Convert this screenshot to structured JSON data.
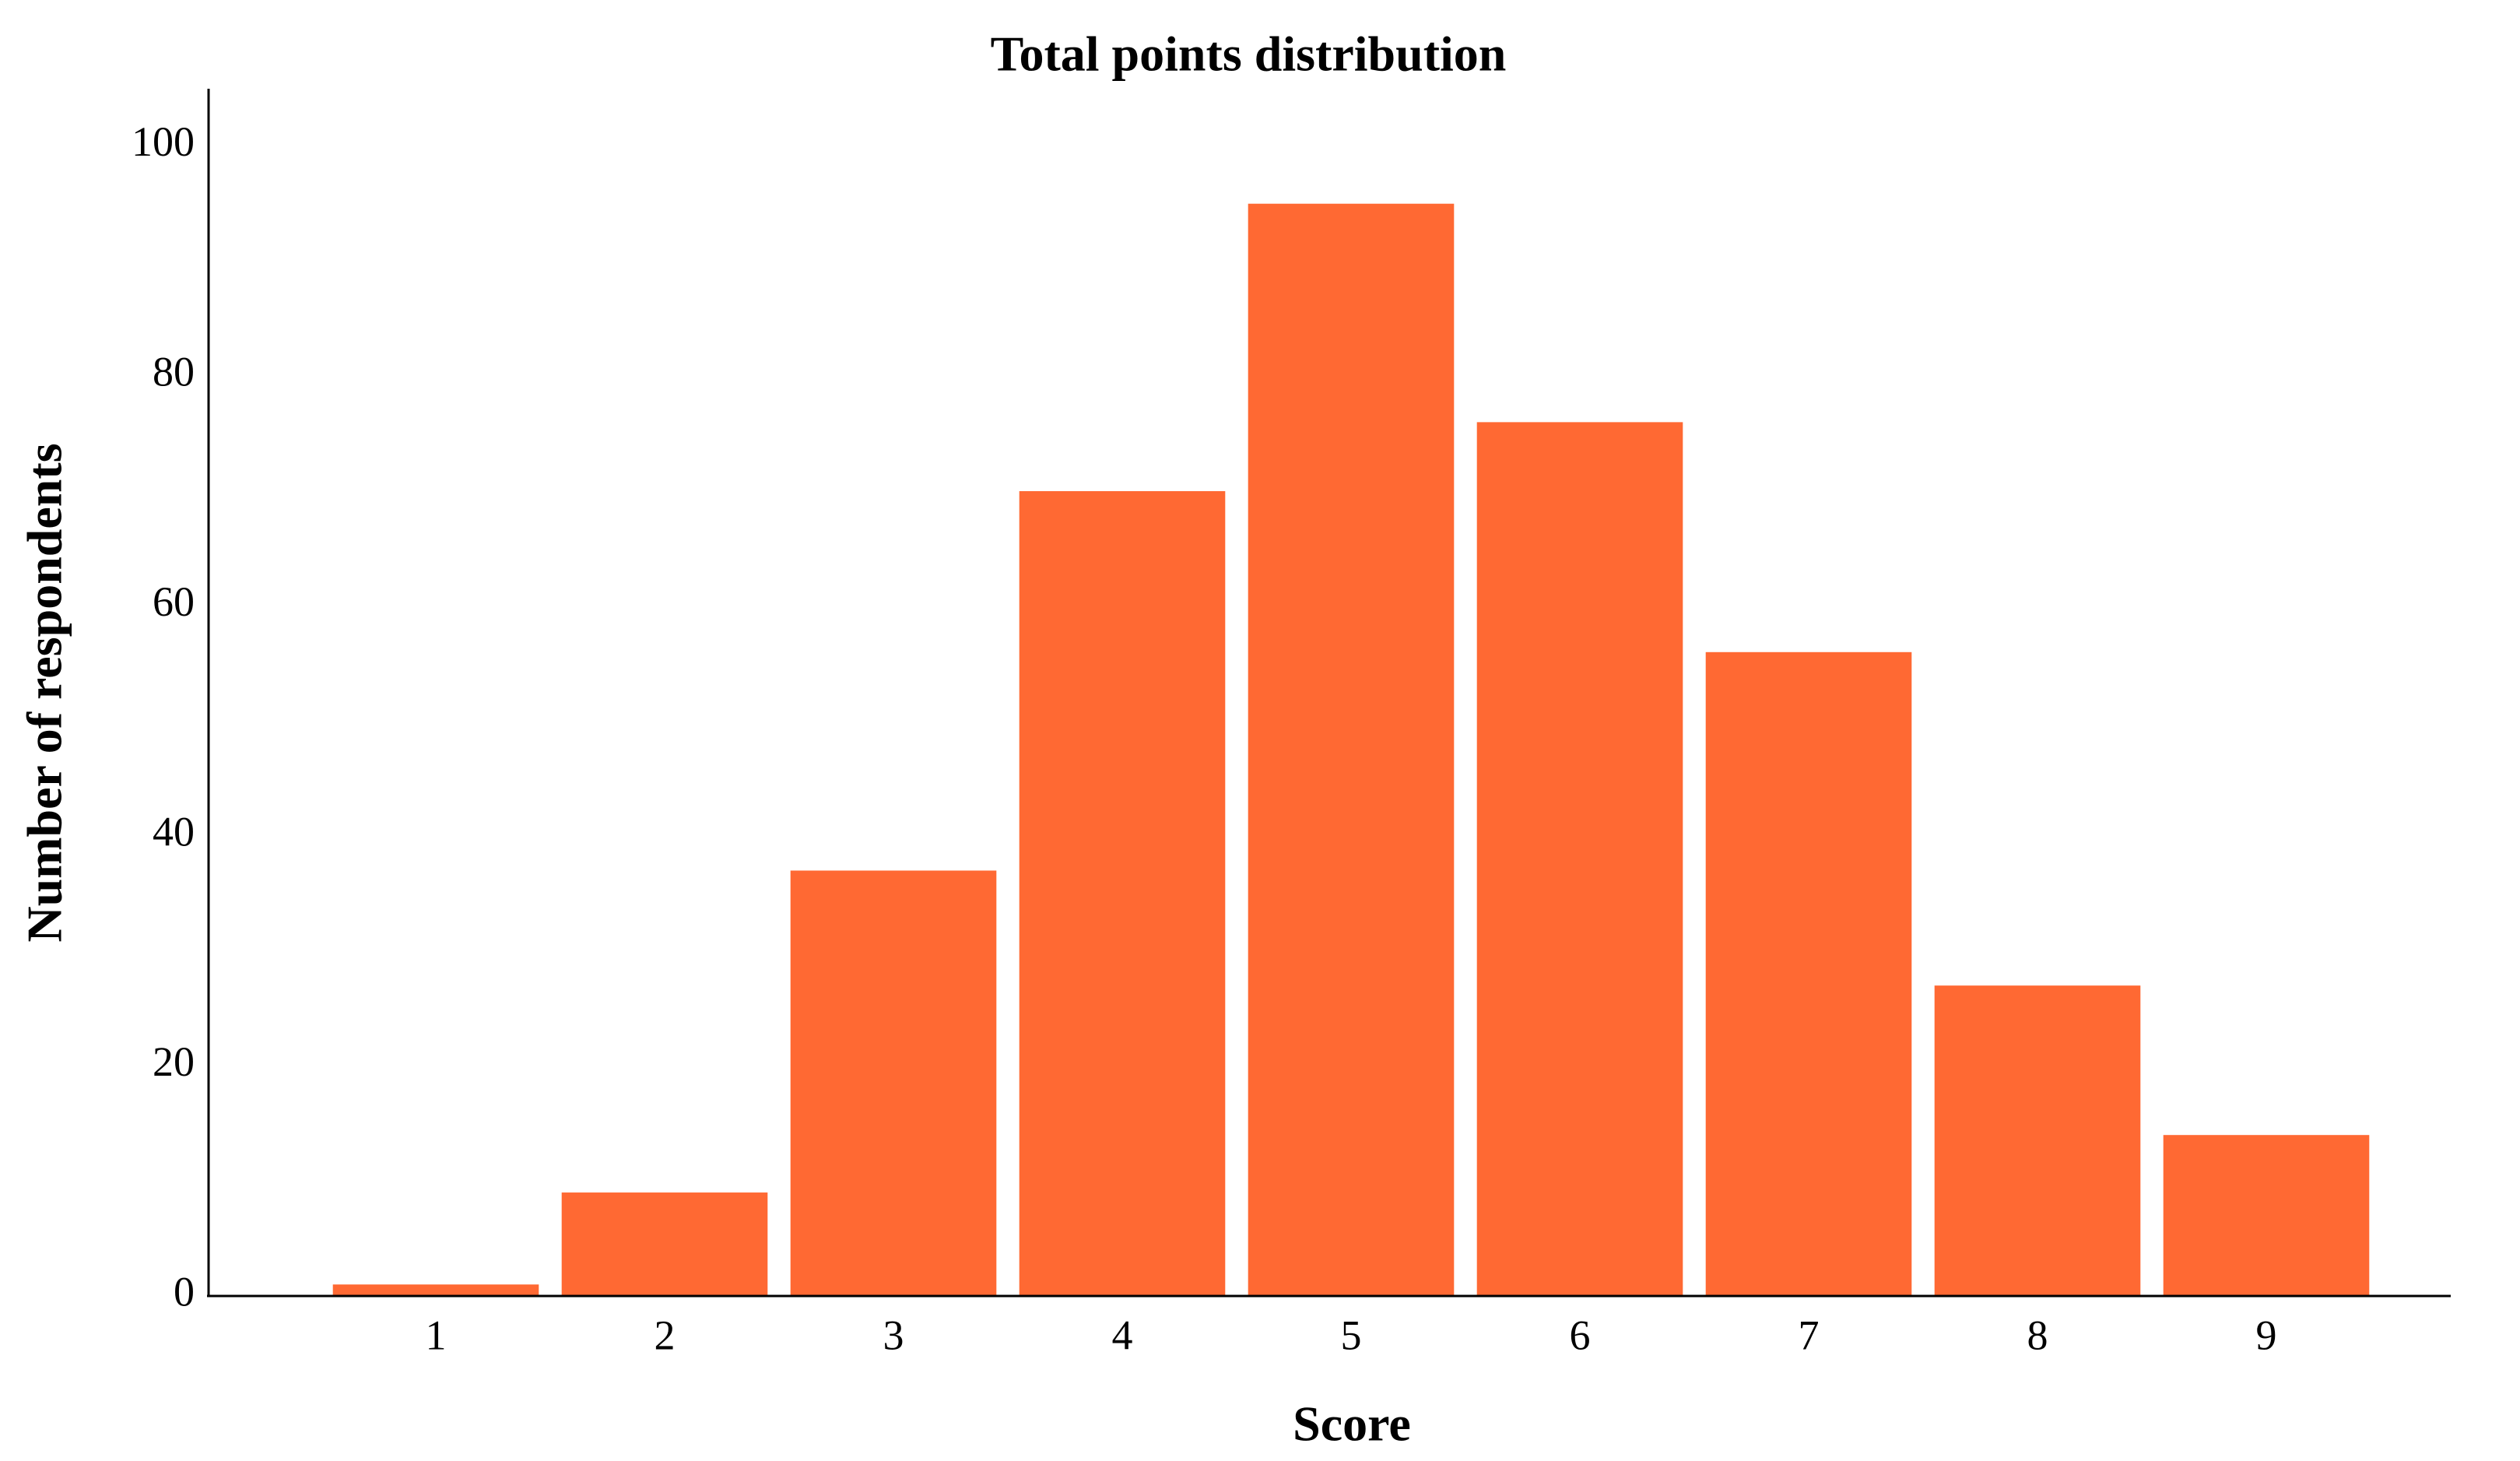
{
  "chart_data": {
    "type": "bar",
    "title": "Total points distribution",
    "x_label": "Score",
    "y_label": "Number of respondents",
    "categories": [
      "1",
      "2",
      "3",
      "4",
      "5",
      "6",
      "7",
      "8",
      "9"
    ],
    "values": [
      1,
      9,
      37,
      70,
      95,
      76,
      56,
      27,
      14
    ],
    "color": "#ff6933",
    "ylim": [
      0,
      105
    ],
    "yticks": [
      0,
      20,
      40,
      60,
      80,
      100
    ]
  }
}
